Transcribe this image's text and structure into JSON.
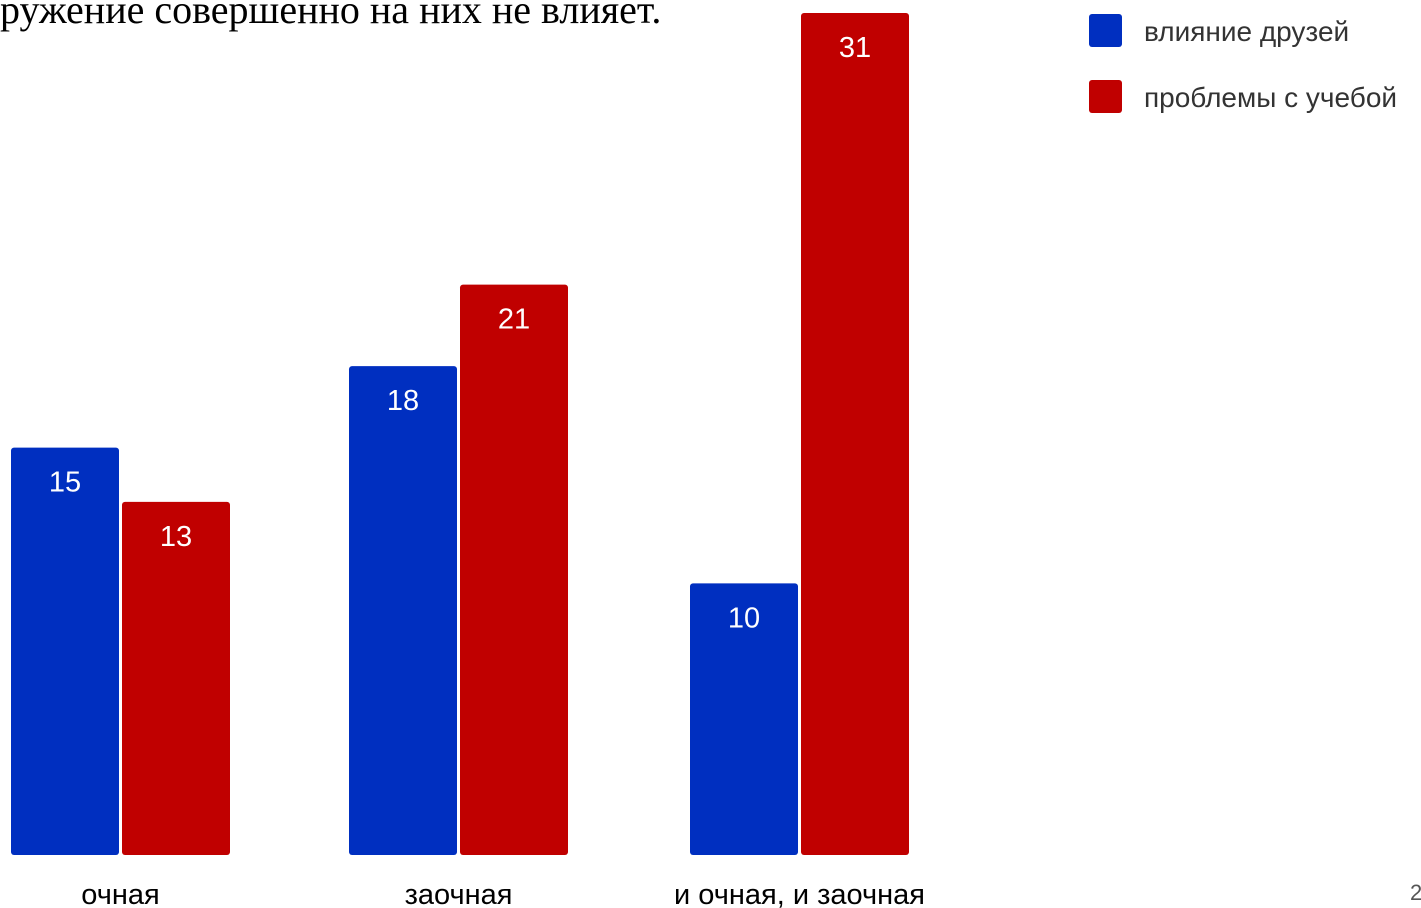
{
  "header": {
    "partial_text": "ружение совершенно на них не влияет."
  },
  "page_number": "2",
  "chart_data": {
    "type": "bar",
    "title": "",
    "xlabel": "",
    "ylabel": "",
    "categories": [
      "очная",
      "заочная",
      "и очная, и заочная"
    ],
    "series": [
      {
        "name": "влияние друзей",
        "values": [
          15,
          18,
          10
        ],
        "color": "#002FC0"
      },
      {
        "name": "проблемы с учебой",
        "values": [
          13,
          21,
          31
        ],
        "color": "#C00000"
      }
    ],
    "ylim": [
      0,
      31
    ],
    "grid": false,
    "legend": "top-right"
  }
}
